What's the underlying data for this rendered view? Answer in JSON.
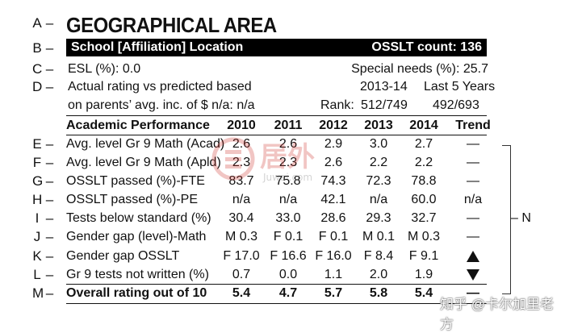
{
  "keys": [
    "A",
    "B",
    "C",
    "D",
    "E",
    "F",
    "G",
    "H",
    "I",
    "J",
    "K",
    "L",
    "M"
  ],
  "key_n": "N",
  "dash": "–",
  "title": "GEOGRAPHICAL AREA",
  "bar": {
    "left": "School [Affiliation] Location",
    "right": "OSSLT count: 136"
  },
  "esl": "ESL (%): 0.0",
  "special": "Special needs (%): 25.7",
  "actual_line1": "Actual rating vs predicted based",
  "actual_line2": "on parents’ avg. inc. of $ n/a: n/a",
  "period_a": "2013-14",
  "period_b": "Last 5 Years",
  "rank_label": "Rank:",
  "rank_a": "512/749",
  "rank_b": "492/693",
  "header": {
    "label": "Academic Performance",
    "cols": [
      "2010",
      "2011",
      "2012",
      "2013",
      "2014",
      "Trend"
    ]
  },
  "rows": [
    {
      "label": "Avg. level Gr 9 Math (Acad)",
      "vals": [
        "2.6",
        "2.6",
        "2.9",
        "3.0",
        "2.7",
        "—"
      ]
    },
    {
      "label": "Avg. level Gr 9 Math (Apld)",
      "vals": [
        "2.3",
        "2.3",
        "2.6",
        "2.2",
        "2.2",
        "—"
      ]
    },
    {
      "label": "OSSLT passed (%)-FTE",
      "vals": [
        "83.7",
        "75.8",
        "74.3",
        "72.3",
        "78.8",
        "—"
      ]
    },
    {
      "label": "OSSLT passed (%)-PE",
      "vals": [
        "n/a",
        "n/a",
        "42.1",
        "n/a",
        "60.0",
        "n/a"
      ]
    },
    {
      "label": "Tests below standard (%)",
      "vals": [
        "30.4",
        "33.0",
        "28.6",
        "29.3",
        "32.7",
        "—"
      ]
    },
    {
      "label": "Gender gap (level)-Math",
      "vals": [
        "M 0.3",
        "F 0.1",
        "F 0.1",
        "M 0.1",
        "M 0.3",
        "—"
      ]
    },
    {
      "label": "Gender gap OSSLT",
      "vals": [
        "F 17.0",
        "F 16.6",
        "F 16.0",
        "F 8.4",
        "F 9.1",
        "up-triangle"
      ]
    },
    {
      "label": "Gr 9 tests not written (%)",
      "vals": [
        "0.7",
        "0.0",
        "1.1",
        "2.0",
        "1.9",
        "down-triangle"
      ]
    }
  ],
  "overall": {
    "label": "Overall rating out of 10",
    "vals": [
      "5.4",
      "4.7",
      "5.7",
      "5.8",
      "5.4",
      "—"
    ]
  },
  "watermark": {
    "logo_text": "居外",
    "logo_url": "Juwai.com",
    "attribution": "知乎 @卡尔加里老方"
  }
}
